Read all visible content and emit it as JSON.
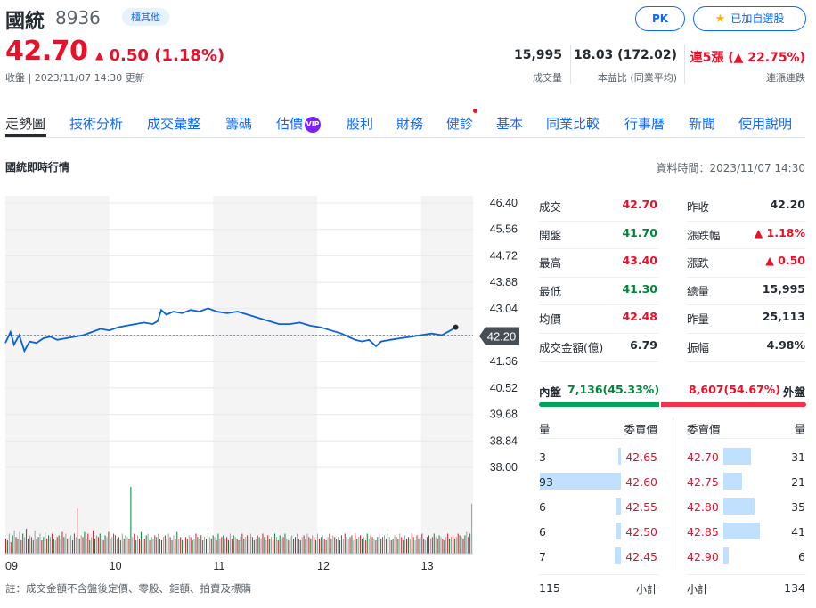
{
  "header": {
    "name": "國統",
    "code": "8936",
    "tag": "櫃其他",
    "pk_label": "PK",
    "watchlist_label": "已加自選股",
    "price": "42.70",
    "change": "0.50 (1.18%)",
    "close_info": "收盤 | 2023/11/07 14:30 更新"
  },
  "stats": [
    {
      "value": "15,995",
      "label": "成交量",
      "color": "#232a31"
    },
    {
      "value": "18.03 (172.02)",
      "label": "本益比 (同業平均)",
      "color": "#232a31"
    },
    {
      "value": "連5漲 (▲ 22.75%)",
      "label": "連漲連跌",
      "color": "#eb0f29"
    }
  ],
  "tabs": [
    "走勢圖",
    "技術分析",
    "成交彙整",
    "籌碼",
    "估價",
    "股利",
    "財務",
    "健診",
    "基本",
    "同業比較",
    "行事曆",
    "新聞",
    "使用說明"
  ],
  "vip_label": "VIP",
  "section": {
    "title": "國統即時行情",
    "data_time": "資料時間：2023/11/07 14:30"
  },
  "chart_data": {
    "type": "line",
    "x_labels": [
      "09",
      "10",
      "11",
      "12",
      "13"
    ],
    "y_ticks": [
      "46.40",
      "45.56",
      "44.72",
      "43.88",
      "43.04",
      "42.20",
      "41.36",
      "40.52",
      "39.68",
      "38.84",
      "38.00"
    ],
    "ylim": [
      38.0,
      46.4
    ],
    "ref_price": 42.2,
    "current_label": "42.20",
    "price_series": [
      {
        "t": "09:00",
        "v": 41.95
      },
      {
        "t": "09:03",
        "v": 42.3
      },
      {
        "t": "09:05",
        "v": 41.9
      },
      {
        "t": "09:08",
        "v": 42.2
      },
      {
        "t": "09:11",
        "v": 41.7
      },
      {
        "t": "09:14",
        "v": 42.0
      },
      {
        "t": "09:18",
        "v": 41.95
      },
      {
        "t": "09:22",
        "v": 42.1
      },
      {
        "t": "09:26",
        "v": 42.15
      },
      {
        "t": "09:30",
        "v": 42.05
      },
      {
        "t": "09:35",
        "v": 42.1
      },
      {
        "t": "09:40",
        "v": 42.15
      },
      {
        "t": "09:45",
        "v": 42.2
      },
      {
        "t": "09:50",
        "v": 42.3
      },
      {
        "t": "09:55",
        "v": 42.4
      },
      {
        "t": "10:00",
        "v": 42.35
      },
      {
        "t": "10:05",
        "v": 42.45
      },
      {
        "t": "10:10",
        "v": 42.5
      },
      {
        "t": "10:15",
        "v": 42.55
      },
      {
        "t": "10:20",
        "v": 42.6
      },
      {
        "t": "10:25",
        "v": 42.55
      },
      {
        "t": "10:28",
        "v": 42.65
      },
      {
        "t": "10:30",
        "v": 43.0
      },
      {
        "t": "10:33",
        "v": 42.85
      },
      {
        "t": "10:37",
        "v": 42.95
      },
      {
        "t": "10:42",
        "v": 42.9
      },
      {
        "t": "10:47",
        "v": 43.0
      },
      {
        "t": "10:52",
        "v": 42.95
      },
      {
        "t": "10:57",
        "v": 43.05
      },
      {
        "t": "11:02",
        "v": 42.95
      },
      {
        "t": "11:08",
        "v": 42.9
      },
      {
        "t": "11:14",
        "v": 42.95
      },
      {
        "t": "11:20",
        "v": 42.85
      },
      {
        "t": "11:26",
        "v": 42.75
      },
      {
        "t": "11:32",
        "v": 42.65
      },
      {
        "t": "11:38",
        "v": 42.55
      },
      {
        "t": "11:44",
        "v": 42.55
      },
      {
        "t": "11:50",
        "v": 42.6
      },
      {
        "t": "11:56",
        "v": 42.5
      },
      {
        "t": "12:02",
        "v": 42.45
      },
      {
        "t": "12:08",
        "v": 42.35
      },
      {
        "t": "12:14",
        "v": 42.25
      },
      {
        "t": "12:18",
        "v": 42.15
      },
      {
        "t": "12:22",
        "v": 42.05
      },
      {
        "t": "12:26",
        "v": 42.0
      },
      {
        "t": "12:30",
        "v": 42.05
      },
      {
        "t": "12:34",
        "v": 41.85
      },
      {
        "t": "12:37",
        "v": 42.0
      },
      {
        "t": "12:42",
        "v": 42.05
      },
      {
        "t": "12:48",
        "v": 42.1
      },
      {
        "t": "12:54",
        "v": 42.15
      },
      {
        "t": "13:00",
        "v": 42.2
      },
      {
        "t": "13:06",
        "v": 42.25
      },
      {
        "t": "13:12",
        "v": 42.2
      },
      {
        "t": "13:17",
        "v": 42.35
      },
      {
        "t": "13:20",
        "v": 42.45
      }
    ],
    "volume_series": [
      9,
      8,
      12,
      7,
      11,
      14,
      10,
      9,
      13,
      8,
      12,
      10,
      15,
      9,
      11,
      10,
      8,
      14,
      9,
      10,
      12,
      8,
      10,
      13,
      9,
      11,
      10,
      12,
      9,
      8,
      10,
      11,
      9,
      13,
      10,
      12,
      9,
      10,
      11,
      8,
      12,
      10,
      27,
      9,
      11,
      10,
      13,
      9,
      12,
      8,
      10,
      14,
      9,
      11,
      10,
      12,
      9,
      8,
      11,
      10,
      13,
      9,
      10,
      12,
      11,
      9,
      10,
      8,
      12,
      9,
      11,
      10,
      9,
      40,
      10,
      12,
      8,
      11,
      9,
      13,
      10,
      9,
      11,
      12,
      8,
      10,
      9,
      11,
      10,
      12,
      9,
      8,
      10,
      11,
      9,
      12,
      10,
      8,
      11,
      9,
      13,
      9,
      10,
      8,
      12,
      10,
      9,
      11,
      10,
      8,
      9,
      12,
      10,
      9,
      11,
      8,
      10,
      9,
      12,
      10,
      9,
      11,
      10,
      8,
      12,
      9,
      10,
      11,
      9,
      10,
      8,
      12,
      9,
      11,
      10,
      9,
      8,
      10,
      12,
      9,
      10,
      11,
      9,
      12,
      10,
      8,
      9,
      11,
      10,
      9,
      12,
      10,
      8,
      11,
      9,
      10,
      9,
      12,
      10,
      8,
      11,
      9,
      10,
      12,
      9,
      8,
      10,
      11,
      9,
      10,
      12,
      9,
      8,
      10,
      11,
      9,
      12,
      10,
      9,
      11,
      10,
      8,
      12,
      9,
      10,
      11,
      9,
      8,
      10,
      12,
      9,
      11,
      10,
      9,
      10,
      8,
      11,
      9,
      12,
      10,
      9,
      10,
      11,
      8,
      12,
      9,
      10,
      11,
      9,
      10,
      8,
      12,
      9,
      11,
      10,
      9,
      8,
      10,
      12,
      9,
      10,
      11,
      9,
      12,
      10,
      8,
      9,
      11,
      10,
      9,
      12,
      10,
      8,
      11,
      9,
      10,
      9,
      12,
      10,
      8,
      11,
      9,
      10,
      12,
      9,
      8,
      10,
      11,
      9,
      10,
      12,
      10,
      9,
      11,
      10,
      9,
      8,
      10,
      12,
      9,
      10,
      11,
      9,
      10,
      12,
      11,
      10,
      9,
      11,
      13,
      10,
      12,
      30
    ]
  },
  "quote": {
    "left": [
      {
        "label": "成交",
        "value": "42.70",
        "color": "#eb0f29"
      },
      {
        "label": "開盤",
        "value": "41.70",
        "color": "#00873c"
      },
      {
        "label": "最高",
        "value": "43.40",
        "color": "#eb0f29"
      },
      {
        "label": "最低",
        "value": "41.30",
        "color": "#00873c"
      },
      {
        "label": "均價",
        "value": "42.48",
        "color": "#eb0f29"
      },
      {
        "label": "成交金額(億)",
        "value": "6.79",
        "color": "#232a31"
      }
    ],
    "right": [
      {
        "label": "昨收",
        "value": "42.20",
        "color": "#232a31"
      },
      {
        "label": "漲跌幅",
        "value": "▲ 1.18%",
        "color": "#eb0f29"
      },
      {
        "label": "漲跌",
        "value": "▲ 0.50",
        "color": "#eb0f29"
      },
      {
        "label": "總量",
        "value": "15,995",
        "color": "#232a31"
      },
      {
        "label": "昨量",
        "value": "25,113",
        "color": "#232a31"
      },
      {
        "label": "振幅",
        "value": "4.98%",
        "color": "#232a31"
      }
    ]
  },
  "ratio": {
    "inner_label": "內盤",
    "inner_value": "7,136(45.33%)",
    "inner_ratio": 0.4533,
    "outer_value": "8,607(54.67%)",
    "outer_label": "外盤"
  },
  "orderbook": {
    "bid_headers": [
      "量",
      "委買價"
    ],
    "ask_headers": [
      "委賣價",
      "量"
    ],
    "bids": [
      {
        "qty": "3",
        "price": "42.65",
        "q": 3
      },
      {
        "qty": "93",
        "price": "42.60",
        "q": 93
      },
      {
        "qty": "6",
        "price": "42.55",
        "q": 6
      },
      {
        "qty": "6",
        "price": "42.50",
        "q": 6
      },
      {
        "qty": "7",
        "price": "42.45",
        "q": 7
      }
    ],
    "asks": [
      {
        "price": "42.70",
        "qty": "31",
        "q": 31
      },
      {
        "price": "42.75",
        "qty": "21",
        "q": 21
      },
      {
        "price": "42.80",
        "qty": "35",
        "q": 35
      },
      {
        "price": "42.85",
        "qty": "41",
        "q": 41
      },
      {
        "price": "42.90",
        "qty": "6",
        "q": 6
      }
    ],
    "bid_total": "115",
    "subtotal_label": "小計",
    "ask_total": "134"
  },
  "footnote": "註：成交金額不含盤後定價、零股、鉅額、拍賣及標購",
  "colors": {
    "accent": "#0f69ff",
    "up": "#eb0f29",
    "down": "#00873c",
    "line": "#0b61d6"
  }
}
